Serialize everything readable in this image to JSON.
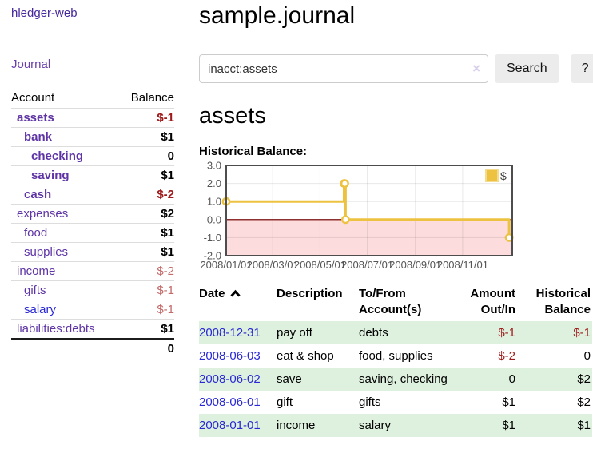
{
  "sidebar": {
    "app_title": "hledger-web",
    "nav": {
      "journal_label": "Journal"
    },
    "accounts_table": {
      "headers": {
        "account": "Account",
        "balance": "Balance"
      },
      "rows": [
        {
          "name": "assets",
          "depth": 1,
          "bold": true,
          "link_color": "purple",
          "balance": "$-1",
          "balance_style": "neg"
        },
        {
          "name": "bank",
          "depth": 2,
          "bold": true,
          "link_color": "purple",
          "balance": "$1",
          "balance_style": ""
        },
        {
          "name": "checking",
          "depth": 3,
          "bold": true,
          "link_color": "purple",
          "balance": "0",
          "balance_style": ""
        },
        {
          "name": "saving",
          "depth": 3,
          "bold": true,
          "link_color": "purple",
          "balance": "$1",
          "balance_style": ""
        },
        {
          "name": "cash",
          "depth": 2,
          "bold": true,
          "link_color": "purple",
          "balance": "$-2",
          "balance_style": "neg"
        },
        {
          "name": "expenses",
          "depth": 1,
          "bold": false,
          "link_color": "purple",
          "balance": "$2",
          "balance_style": ""
        },
        {
          "name": "food",
          "depth": 2,
          "bold": false,
          "link_color": "purple",
          "balance": "$1",
          "balance_style": ""
        },
        {
          "name": "supplies",
          "depth": 2,
          "bold": false,
          "link_color": "purple",
          "balance": "$1",
          "balance_style": ""
        },
        {
          "name": "income",
          "depth": 1,
          "bold": false,
          "link_color": "purple",
          "balance": "$-2",
          "balance_style": "neg-dim"
        },
        {
          "name": "gifts",
          "depth": 2,
          "bold": false,
          "link_color": "purple",
          "balance": "$-1",
          "balance_style": "neg-dim"
        },
        {
          "name": "salary",
          "depth": 2,
          "bold": false,
          "link_color": "blue",
          "balance": "$-1",
          "balance_style": "neg-dim"
        },
        {
          "name": "liabilities:debts",
          "depth": 1,
          "bold": false,
          "link_color": "purple",
          "balance": "$1",
          "balance_style": ""
        }
      ],
      "total": "0"
    }
  },
  "main": {
    "title": "sample.journal",
    "search": {
      "value": "inacct:assets",
      "clear_icon": "×",
      "button_label": "Search",
      "help_label": "?"
    },
    "section": {
      "heading": "assets",
      "chart_label": "Historical Balance:"
    },
    "register_table": {
      "headers": {
        "date": "Date",
        "description": "Description",
        "tofrom": "To/From Account(s)",
        "amount": "Amount Out/In",
        "balance": "Historical Balance"
      },
      "rows": [
        {
          "date": "2008-12-31",
          "description": "pay off",
          "accounts": "debts",
          "amount": "$-1",
          "amount_neg": true,
          "balance": "$-1",
          "balance_neg": true
        },
        {
          "date": "2008-06-03",
          "description": "eat & shop",
          "accounts": "food, supplies",
          "amount": "$-2",
          "amount_neg": true,
          "balance": "0",
          "balance_neg": false
        },
        {
          "date": "2008-06-02",
          "description": "save",
          "accounts": "saving, checking",
          "amount": "0",
          "amount_neg": false,
          "balance": "$2",
          "balance_neg": false
        },
        {
          "date": "2008-06-01",
          "description": "gift",
          "accounts": "gifts",
          "amount": "$1",
          "amount_neg": false,
          "balance": "$2",
          "balance_neg": false
        },
        {
          "date": "2008-01-01",
          "description": "income",
          "accounts": "salary",
          "amount": "$1",
          "amount_neg": false,
          "balance": "$1",
          "balance_neg": false
        }
      ]
    }
  },
  "chart_data": {
    "type": "line",
    "title": "Historical Balance:",
    "step": true,
    "xlim": [
      "2008/01/01",
      "2009/01/04"
    ],
    "ylim": [
      -2,
      3
    ],
    "x_ticks": [
      "2008/01/01",
      "2008/03/01",
      "2008/05/01",
      "2008/07/01",
      "2008/09/01",
      "2008/11/01"
    ],
    "y_tick_labels": [
      "3.0",
      "2.0",
      "1.0",
      "0.0",
      "-1.0",
      "-2.0"
    ],
    "series": [
      {
        "name": "$",
        "color": "#edc240",
        "points": [
          [
            "2008-01-01",
            1
          ],
          [
            "2008-06-01",
            2
          ],
          [
            "2008-06-02",
            2
          ],
          [
            "2008-06-03",
            0
          ],
          [
            "2008-12-31",
            -1
          ]
        ]
      }
    ],
    "legend": {
      "position": "top-right",
      "entries": [
        {
          "label": "$",
          "swatch_color": "#edc240"
        }
      ]
    },
    "negative_region_fill": "#fcdcdc",
    "zero_line_color": "#8f2f2f",
    "grid": true
  }
}
